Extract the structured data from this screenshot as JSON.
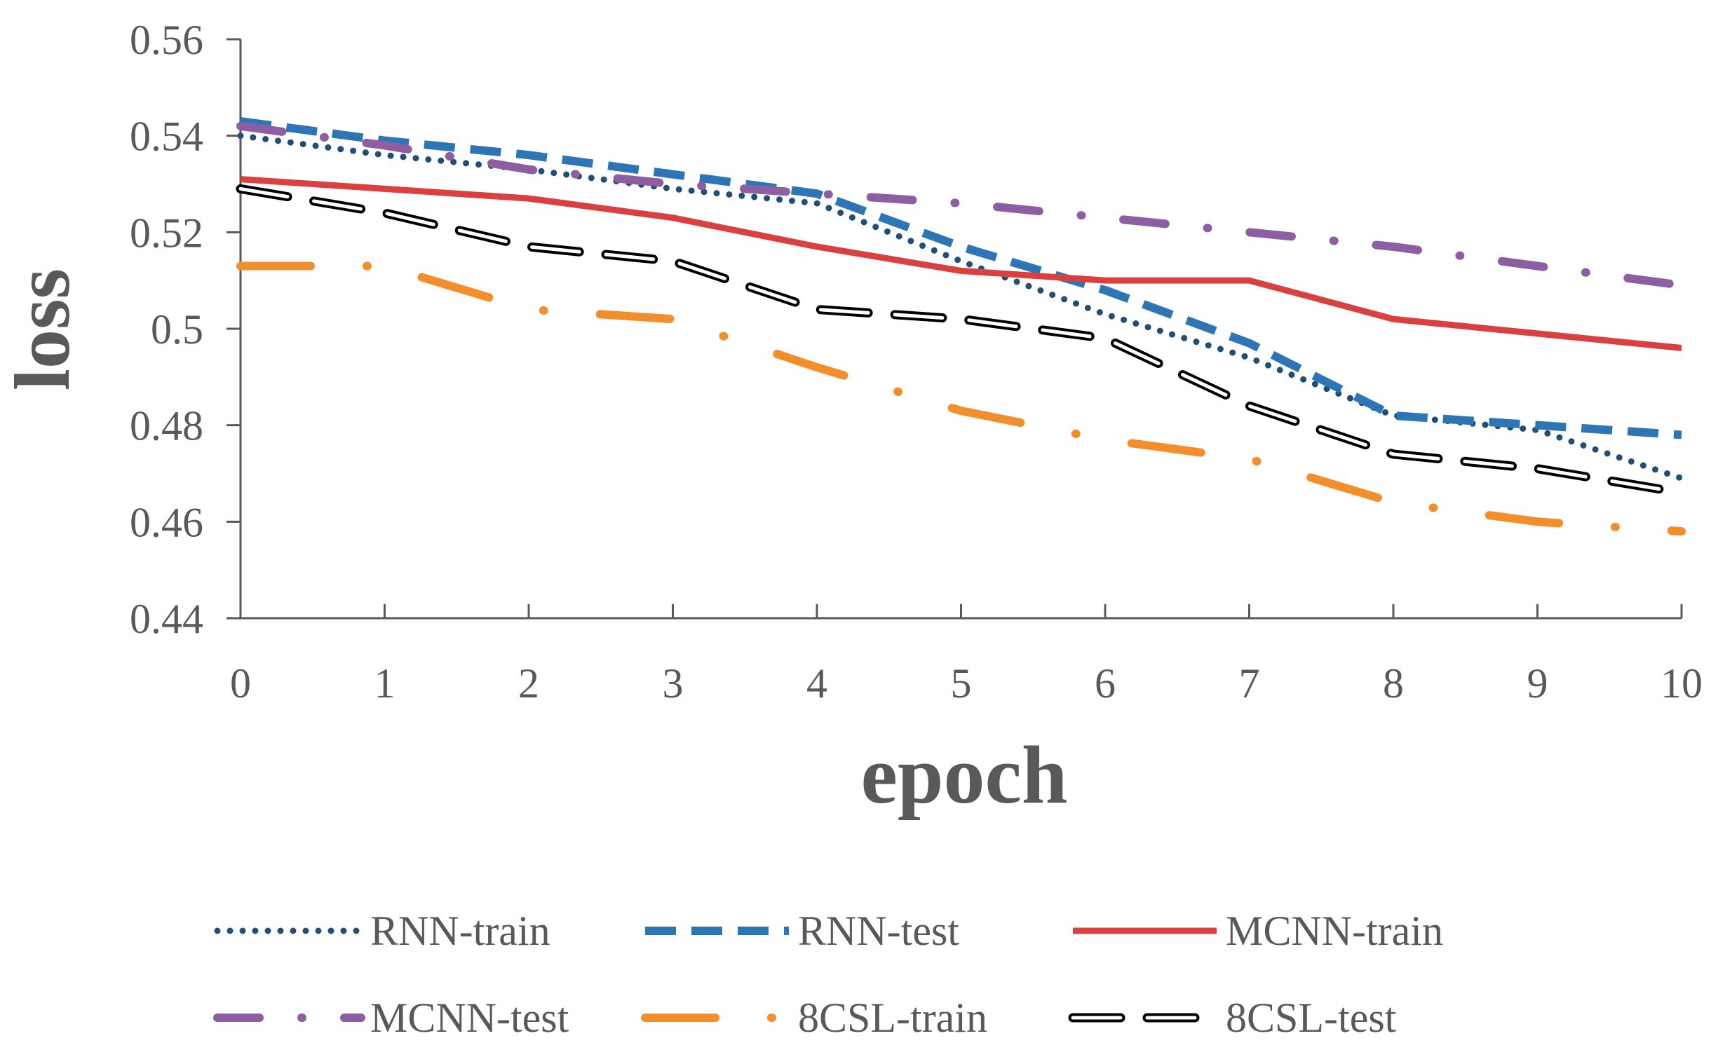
{
  "chart_data": {
    "type": "line",
    "title": "",
    "xlabel": "epoch",
    "ylabel": "loss",
    "x": [
      0,
      1,
      2,
      3,
      4,
      5,
      6,
      7,
      8,
      9,
      10
    ],
    "xlim": [
      0,
      10
    ],
    "ylim": [
      0.44,
      0.56
    ],
    "x_tick_labels": [
      "0",
      "1",
      "2",
      "3",
      "4",
      "5",
      "6",
      "7",
      "8",
      "9",
      "10"
    ],
    "y_tick_labels": [
      "0.44",
      "0.46",
      "0.48",
      "0.5",
      "0.52",
      "0.54",
      "0.56"
    ],
    "legend_position": "bottom",
    "grid": false,
    "series": [
      {
        "name": "RNN-train",
        "color": "#1f4e79",
        "style": "dotted",
        "values": [
          0.54,
          0.536,
          0.533,
          0.529,
          0.526,
          0.514,
          0.503,
          0.494,
          0.482,
          0.479,
          0.469
        ]
      },
      {
        "name": "RNN-test",
        "color": "#2e75b6",
        "style": "dashed",
        "values": [
          0.543,
          0.539,
          0.536,
          0.532,
          0.528,
          0.517,
          0.508,
          0.497,
          0.482,
          0.48,
          0.478
        ]
      },
      {
        "name": "MCNN-train",
        "color": "#d9403f",
        "style": "solid",
        "values": [
          0.531,
          0.529,
          0.527,
          0.523,
          0.517,
          0.512,
          0.51,
          0.51,
          0.502,
          0.499,
          0.496
        ]
      },
      {
        "name": "MCNN-test",
        "color": "#8e5ea2",
        "style": "dash-dot",
        "values": [
          0.542,
          0.538,
          0.533,
          0.53,
          0.528,
          0.526,
          0.523,
          0.52,
          0.517,
          0.513,
          0.509
        ]
      },
      {
        "name": "8CSL-train",
        "color": "#f28e2b",
        "style": "long-dash-dot",
        "values": [
          0.513,
          0.513,
          0.504,
          0.502,
          0.492,
          0.483,
          0.477,
          0.473,
          0.464,
          0.46,
          0.458
        ]
      },
      {
        "name": "8CSL-test",
        "color": "#000000",
        "style": "double-dash",
        "values": [
          0.529,
          0.524,
          0.517,
          0.514,
          0.504,
          0.502,
          0.498,
          0.484,
          0.474,
          0.471,
          0.466
        ]
      }
    ]
  }
}
